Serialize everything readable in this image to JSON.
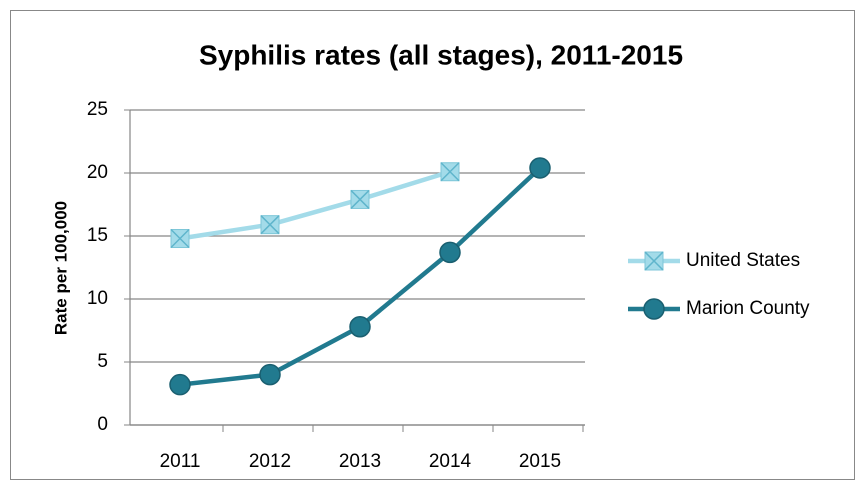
{
  "chart_data": {
    "type": "line",
    "title": "Syphilis rates (all stages), 2011-2015",
    "y_label": "Rate per 100,000",
    "categories": [
      "2011",
      "2012",
      "2013",
      "2014",
      "2015"
    ],
    "series": [
      {
        "name": "United States",
        "color": "#a3dbe9",
        "marker": "x-square",
        "values": [
          14.8,
          15.9,
          17.9,
          20.1,
          null
        ]
      },
      {
        "name": "Marion County",
        "color": "#217a8f",
        "marker": "circle",
        "values": [
          3.2,
          4.0,
          7.8,
          13.7,
          20.4
        ]
      }
    ],
    "ylim": [
      0,
      25
    ],
    "yticks": [
      0,
      5,
      10,
      15,
      20,
      25
    ],
    "grid": true,
    "legend": "right"
  }
}
